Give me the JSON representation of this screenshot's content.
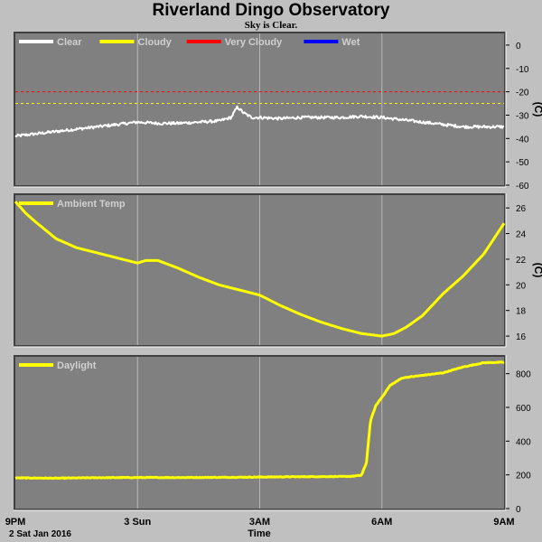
{
  "header": {
    "title": "Riverland Dingo Observatory",
    "subtitle": "Sky is Clear."
  },
  "x_axis": {
    "label": "Time",
    "date_label": "2 Sat Jan 2016",
    "ticks": [
      "9PM",
      "3 Sun",
      "3AM",
      "6AM",
      "9AM"
    ],
    "tick_hours": [
      0,
      3,
      6,
      9,
      12
    ],
    "range_hours": [
      0,
      12
    ]
  },
  "colors": {
    "panel_bg": "#808080",
    "page_bg": "#c0c0c0",
    "clear": "#ffffff",
    "cloudy": "#ffff00",
    "very_cloudy": "#ff0000",
    "wet": "#0000ff"
  },
  "chart_data": [
    {
      "type": "line",
      "legend": [
        {
          "name": "Clear",
          "color": "#ffffff"
        },
        {
          "name": "Cloudy",
          "color": "#ffff00"
        },
        {
          "name": "Very Cloudy",
          "color": "#ff0000"
        },
        {
          "name": "Wet",
          "color": "#0000ff"
        }
      ],
      "ylabel": "(C)",
      "ylim": [
        -60,
        5
      ],
      "yticks": [
        0,
        -10,
        -20,
        -30,
        -40,
        -50,
        -60
      ],
      "thresholds": [
        {
          "value": -20,
          "color": "#ff0000"
        },
        {
          "value": -25,
          "color": "#ffff00"
        }
      ],
      "series": [
        {
          "name": "Clear",
          "color": "#ffffff",
          "noise": 0.6,
          "x": [
            0,
            0.5,
            1,
            1.5,
            2,
            2.5,
            3,
            3.5,
            4,
            4.5,
            5,
            5.3,
            5.45,
            5.6,
            5.8,
            6,
            6.5,
            7,
            7.5,
            8,
            8.5,
            9,
            9.5,
            10,
            10.5,
            11,
            11.5,
            12
          ],
          "y": [
            -39,
            -38,
            -37,
            -36,
            -35,
            -34,
            -33,
            -33.5,
            -33.5,
            -33,
            -32.5,
            -31,
            -26.5,
            -29,
            -31,
            -31,
            -31.5,
            -31,
            -31,
            -31,
            -30.5,
            -31,
            -32,
            -33,
            -34,
            -35,
            -35,
            -35
          ]
        }
      ]
    },
    {
      "type": "line",
      "legend": [
        {
          "name": "Ambient Temp",
          "color": "#ffff00"
        }
      ],
      "ylabel": "(C)",
      "ylim": [
        15.3,
        27
      ],
      "yticks": [
        26,
        24,
        22,
        20,
        18,
        16
      ],
      "series": [
        {
          "name": "Ambient Temp",
          "color": "#ffff00",
          "noise": 0,
          "x": [
            0,
            0.25,
            0.5,
            1,
            1.5,
            2,
            2.5,
            3,
            3.2,
            3.5,
            4,
            4.5,
            5,
            5.5,
            6,
            6.5,
            7,
            7.5,
            8,
            8.5,
            9,
            9.3,
            9.6,
            10,
            10.5,
            11,
            11.5,
            12
          ],
          "y": [
            26.5,
            25.6,
            24.9,
            23.6,
            22.9,
            22.5,
            22.1,
            21.7,
            21.9,
            21.9,
            21.3,
            20.6,
            20.0,
            19.6,
            19.2,
            18.4,
            17.7,
            17.1,
            16.6,
            16.2,
            16.0,
            16.2,
            16.7,
            17.6,
            19.3,
            20.7,
            22.4,
            24.8
          ]
        }
      ]
    },
    {
      "type": "line",
      "legend": [
        {
          "name": "Daylight",
          "color": "#ffff00"
        }
      ],
      "ylabel": "",
      "ylim": [
        0,
        900
      ],
      "yticks": [
        800,
        600,
        400,
        200,
        0
      ],
      "series": [
        {
          "name": "Daylight",
          "color": "#ffff00",
          "noise": 2,
          "x": [
            0,
            1,
            2,
            3,
            4,
            5,
            6,
            7,
            8,
            8.3,
            8.5,
            8.62,
            8.72,
            8.85,
            9,
            9.2,
            9.5,
            10,
            10.5,
            11,
            11.5,
            12
          ],
          "y": [
            182,
            180,
            183,
            184,
            184,
            185,
            187,
            189,
            190,
            192,
            198,
            270,
            520,
            610,
            660,
            730,
            775,
            790,
            805,
            840,
            865,
            868
          ]
        }
      ]
    }
  ]
}
